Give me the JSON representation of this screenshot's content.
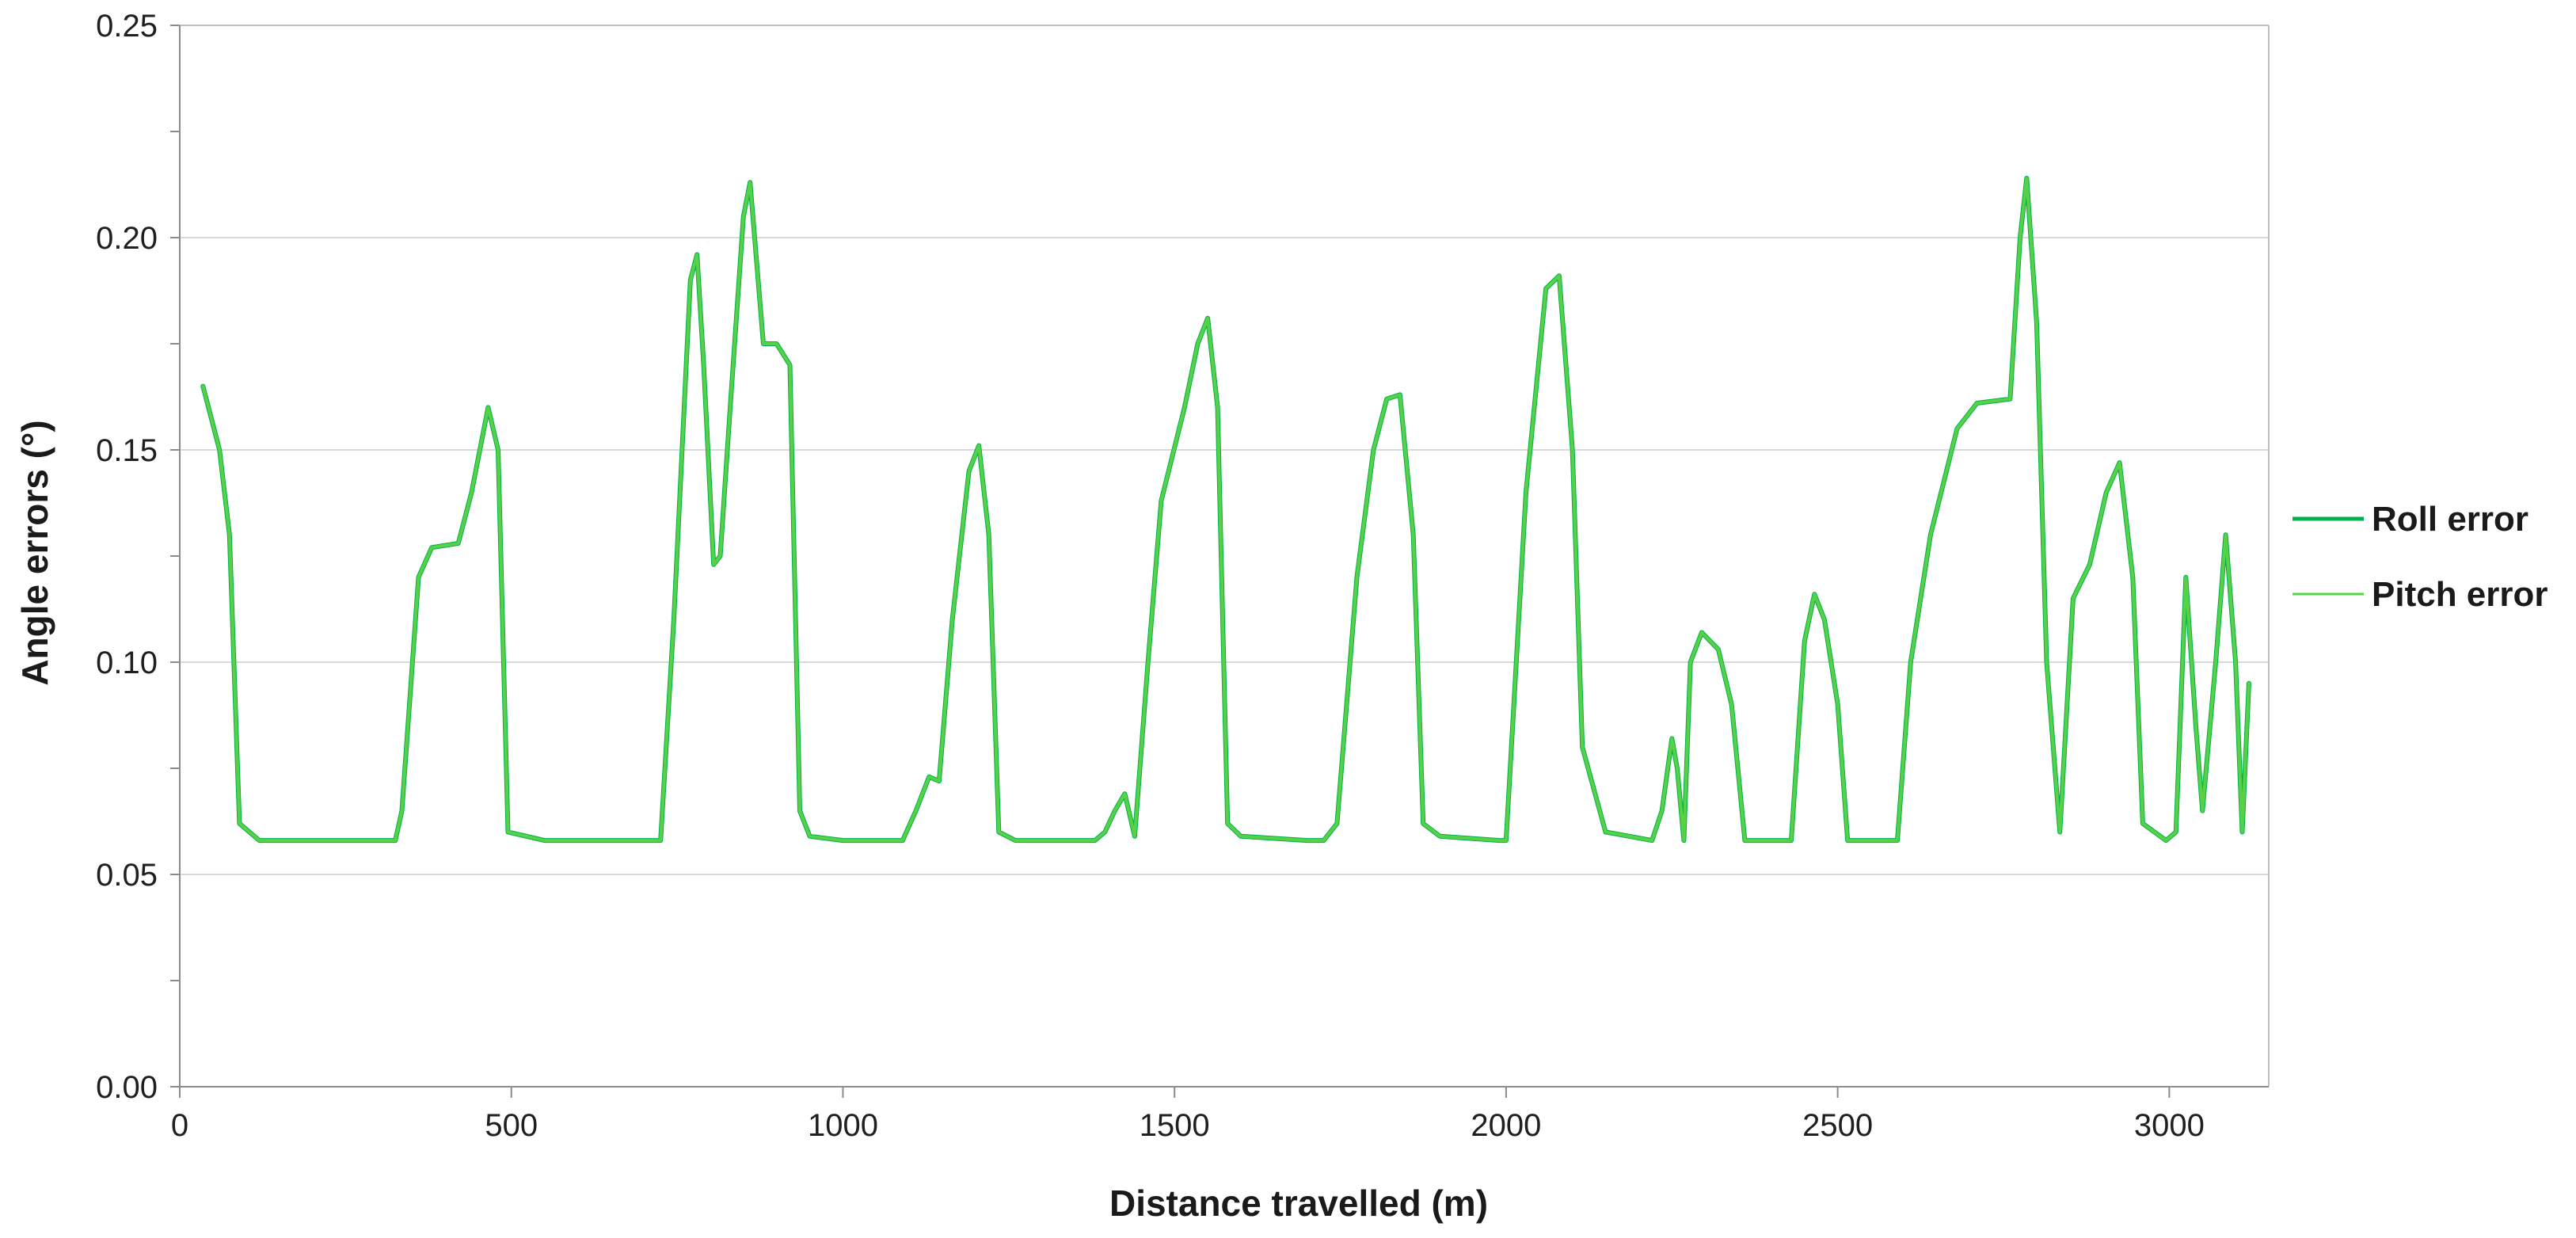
{
  "chart_data": {
    "type": "line",
    "title": "",
    "xlabel": "Distance travelled (m)",
    "ylabel": "Angle errors (°)",
    "xlim": [
      0,
      3150
    ],
    "ylim": [
      0,
      0.25
    ],
    "x_ticks": [
      0,
      500,
      1000,
      1500,
      2000,
      2500,
      3000
    ],
    "x_tick_labels": [
      "0",
      "500",
      "1000",
      "1500",
      "2000",
      "2500",
      "3000"
    ],
    "y_ticks": [
      0,
      0.05,
      0.1,
      0.15,
      0.2,
      0.25
    ],
    "y_tick_labels": [
      "0.00",
      "0.05",
      "0.10",
      "0.15",
      "0.20",
      "0.25"
    ],
    "grid": "horizontal",
    "legend_position": "right",
    "series": [
      {
        "name": "Roll error",
        "color": "#00b050",
        "points": [
          [
            35,
            0.165
          ],
          [
            60,
            0.15
          ],
          [
            75,
            0.13
          ],
          [
            90,
            0.062
          ],
          [
            120,
            0.058
          ],
          [
            200,
            0.058
          ],
          [
            310,
            0.058
          ],
          [
            325,
            0.058
          ],
          [
            335,
            0.065
          ],
          [
            360,
            0.12
          ],
          [
            380,
            0.127
          ],
          [
            420,
            0.128
          ],
          [
            440,
            0.14
          ],
          [
            465,
            0.16
          ],
          [
            480,
            0.15
          ],
          [
            495,
            0.06
          ],
          [
            550,
            0.058
          ],
          [
            700,
            0.058
          ],
          [
            725,
            0.058
          ],
          [
            745,
            0.11
          ],
          [
            770,
            0.19
          ],
          [
            780,
            0.196
          ],
          [
            790,
            0.17
          ],
          [
            805,
            0.123
          ],
          [
            815,
            0.125
          ],
          [
            830,
            0.16
          ],
          [
            850,
            0.205
          ],
          [
            860,
            0.213
          ],
          [
            880,
            0.175
          ],
          [
            900,
            0.175
          ],
          [
            920,
            0.17
          ],
          [
            935,
            0.065
          ],
          [
            950,
            0.059
          ],
          [
            1000,
            0.058
          ],
          [
            1090,
            0.058
          ],
          [
            1110,
            0.065
          ],
          [
            1130,
            0.073
          ],
          [
            1145,
            0.072
          ],
          [
            1165,
            0.11
          ],
          [
            1190,
            0.145
          ],
          [
            1205,
            0.151
          ],
          [
            1220,
            0.13
          ],
          [
            1235,
            0.06
          ],
          [
            1260,
            0.058
          ],
          [
            1380,
            0.058
          ],
          [
            1395,
            0.06
          ],
          [
            1410,
            0.065
          ],
          [
            1425,
            0.069
          ],
          [
            1440,
            0.059
          ],
          [
            1460,
            0.1
          ],
          [
            1480,
            0.138
          ],
          [
            1515,
            0.16
          ],
          [
            1535,
            0.175
          ],
          [
            1550,
            0.181
          ],
          [
            1565,
            0.16
          ],
          [
            1580,
            0.062
          ],
          [
            1600,
            0.059
          ],
          [
            1700,
            0.058
          ],
          [
            1725,
            0.058
          ],
          [
            1745,
            0.062
          ],
          [
            1775,
            0.12
          ],
          [
            1800,
            0.15
          ],
          [
            1820,
            0.162
          ],
          [
            1840,
            0.163
          ],
          [
            1860,
            0.13
          ],
          [
            1875,
            0.062
          ],
          [
            1900,
            0.059
          ],
          [
            1990,
            0.058
          ],
          [
            2000,
            0.058
          ],
          [
            2030,
            0.14
          ],
          [
            2060,
            0.188
          ],
          [
            2080,
            0.191
          ],
          [
            2100,
            0.15
          ],
          [
            2115,
            0.08
          ],
          [
            2150,
            0.06
          ],
          [
            2220,
            0.058
          ],
          [
            2235,
            0.065
          ],
          [
            2250,
            0.082
          ],
          [
            2258,
            0.075
          ],
          [
            2268,
            0.058
          ],
          [
            2278,
            0.1
          ],
          [
            2295,
            0.107
          ],
          [
            2320,
            0.103
          ],
          [
            2340,
            0.09
          ],
          [
            2360,
            0.058
          ],
          [
            2380,
            0.058
          ],
          [
            2410,
            0.058
          ],
          [
            2430,
            0.058
          ],
          [
            2450,
            0.105
          ],
          [
            2465,
            0.116
          ],
          [
            2480,
            0.11
          ],
          [
            2500,
            0.09
          ],
          [
            2515,
            0.058
          ],
          [
            2540,
            0.058
          ],
          [
            2590,
            0.058
          ],
          [
            2610,
            0.1
          ],
          [
            2640,
            0.13
          ],
          [
            2680,
            0.155
          ],
          [
            2710,
            0.161
          ],
          [
            2760,
            0.162
          ],
          [
            2775,
            0.2
          ],
          [
            2785,
            0.214
          ],
          [
            2800,
            0.18
          ],
          [
            2815,
            0.1
          ],
          [
            2835,
            0.06
          ],
          [
            2855,
            0.115
          ],
          [
            2880,
            0.123
          ],
          [
            2905,
            0.14
          ],
          [
            2925,
            0.147
          ],
          [
            2945,
            0.12
          ],
          [
            2960,
            0.062
          ],
          [
            2995,
            0.058
          ],
          [
            3010,
            0.06
          ],
          [
            3025,
            0.12
          ],
          [
            3040,
            0.085
          ],
          [
            3050,
            0.065
          ],
          [
            3070,
            0.1
          ],
          [
            3085,
            0.13
          ],
          [
            3100,
            0.1
          ],
          [
            3110,
            0.06
          ],
          [
            3120,
            0.095
          ]
        ]
      },
      {
        "name": "Pitch error",
        "color": "#57d146",
        "points": [
          [
            35,
            0.165
          ],
          [
            60,
            0.15
          ],
          [
            75,
            0.13
          ],
          [
            90,
            0.062
          ],
          [
            120,
            0.058
          ],
          [
            200,
            0.058
          ],
          [
            310,
            0.058
          ],
          [
            325,
            0.058
          ],
          [
            335,
            0.065
          ],
          [
            360,
            0.12
          ],
          [
            380,
            0.127
          ],
          [
            420,
            0.128
          ],
          [
            440,
            0.14
          ],
          [
            465,
            0.16
          ],
          [
            480,
            0.15
          ],
          [
            495,
            0.06
          ],
          [
            550,
            0.058
          ],
          [
            700,
            0.058
          ],
          [
            725,
            0.058
          ],
          [
            745,
            0.11
          ],
          [
            770,
            0.19
          ],
          [
            780,
            0.196
          ],
          [
            790,
            0.17
          ],
          [
            805,
            0.123
          ],
          [
            815,
            0.125
          ],
          [
            830,
            0.16
          ],
          [
            850,
            0.205
          ],
          [
            860,
            0.213
          ],
          [
            880,
            0.175
          ],
          [
            900,
            0.175
          ],
          [
            920,
            0.17
          ],
          [
            935,
            0.065
          ],
          [
            950,
            0.059
          ],
          [
            1000,
            0.058
          ],
          [
            1090,
            0.058
          ],
          [
            1110,
            0.065
          ],
          [
            1130,
            0.073
          ],
          [
            1145,
            0.072
          ],
          [
            1165,
            0.11
          ],
          [
            1190,
            0.145
          ],
          [
            1205,
            0.151
          ],
          [
            1220,
            0.13
          ],
          [
            1235,
            0.06
          ],
          [
            1260,
            0.058
          ],
          [
            1380,
            0.058
          ],
          [
            1395,
            0.06
          ],
          [
            1410,
            0.065
          ],
          [
            1425,
            0.069
          ],
          [
            1440,
            0.059
          ],
          [
            1460,
            0.1
          ],
          [
            1480,
            0.138
          ],
          [
            1515,
            0.16
          ],
          [
            1535,
            0.175
          ],
          [
            1550,
            0.181
          ],
          [
            1565,
            0.16
          ],
          [
            1580,
            0.062
          ],
          [
            1600,
            0.059
          ],
          [
            1700,
            0.058
          ],
          [
            1725,
            0.058
          ],
          [
            1745,
            0.062
          ],
          [
            1775,
            0.12
          ],
          [
            1800,
            0.15
          ],
          [
            1820,
            0.162
          ],
          [
            1840,
            0.163
          ],
          [
            1860,
            0.13
          ],
          [
            1875,
            0.062
          ],
          [
            1900,
            0.059
          ],
          [
            1990,
            0.058
          ],
          [
            2000,
            0.058
          ],
          [
            2030,
            0.14
          ],
          [
            2060,
            0.188
          ],
          [
            2080,
            0.191
          ],
          [
            2100,
            0.15
          ],
          [
            2115,
            0.08
          ],
          [
            2150,
            0.06
          ],
          [
            2220,
            0.058
          ],
          [
            2235,
            0.065
          ],
          [
            2250,
            0.082
          ],
          [
            2258,
            0.075
          ],
          [
            2268,
            0.058
          ],
          [
            2278,
            0.1
          ],
          [
            2295,
            0.107
          ],
          [
            2320,
            0.103
          ],
          [
            2340,
            0.09
          ],
          [
            2360,
            0.058
          ],
          [
            2380,
            0.058
          ],
          [
            2410,
            0.058
          ],
          [
            2430,
            0.058
          ],
          [
            2450,
            0.105
          ],
          [
            2465,
            0.116
          ],
          [
            2480,
            0.11
          ],
          [
            2500,
            0.09
          ],
          [
            2515,
            0.058
          ],
          [
            2540,
            0.058
          ],
          [
            2590,
            0.058
          ],
          [
            2610,
            0.1
          ],
          [
            2640,
            0.13
          ],
          [
            2680,
            0.155
          ],
          [
            2710,
            0.161
          ],
          [
            2760,
            0.162
          ],
          [
            2775,
            0.2
          ],
          [
            2785,
            0.214
          ],
          [
            2800,
            0.18
          ],
          [
            2815,
            0.1
          ],
          [
            2835,
            0.06
          ],
          [
            2855,
            0.115
          ],
          [
            2880,
            0.123
          ],
          [
            2905,
            0.14
          ],
          [
            2925,
            0.147
          ],
          [
            2945,
            0.12
          ],
          [
            2960,
            0.062
          ],
          [
            2995,
            0.058
          ],
          [
            3010,
            0.06
          ],
          [
            3025,
            0.12
          ],
          [
            3040,
            0.085
          ],
          [
            3050,
            0.065
          ],
          [
            3070,
            0.1
          ],
          [
            3085,
            0.13
          ],
          [
            3100,
            0.1
          ],
          [
            3110,
            0.06
          ],
          [
            3120,
            0.095
          ]
        ]
      }
    ]
  }
}
